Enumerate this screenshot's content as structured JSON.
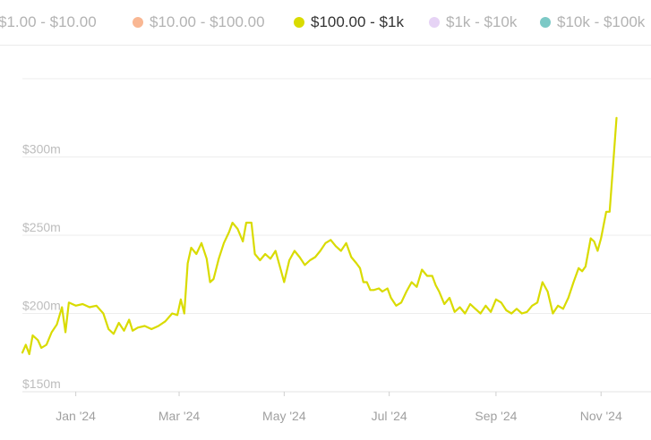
{
  "legend": {
    "items": [
      {
        "label": "$1.00 - $10.00",
        "color": "#f2f2f2",
        "active": false
      },
      {
        "label": "$10.00 - $100.00",
        "color": "#f9b793",
        "active": false
      },
      {
        "label": "$100.00 - $1k",
        "color": "#d9db00",
        "active": true
      },
      {
        "label": "$1k - $10k",
        "color": "#e6d3f5",
        "active": false
      },
      {
        "label": "$10k - $100k",
        "color": "#7cc9c6",
        "active": false
      }
    ]
  },
  "chart_data": {
    "type": "line",
    "title": "",
    "xlabel": "",
    "ylabel": "",
    "ylim": [
      150,
      350
    ],
    "xlim": [
      "2023-12-01",
      "2024-11-30"
    ],
    "y_ticks": [
      {
        "value": 150,
        "label": "$150m"
      },
      {
        "value": 200,
        "label": "$200m"
      },
      {
        "value": 250,
        "label": "$250m"
      },
      {
        "value": 300,
        "label": "$300m"
      }
    ],
    "x_ticks": [
      {
        "date": "2024-01-01",
        "label": "Jan '24"
      },
      {
        "date": "2024-03-01",
        "label": "Mar '24"
      },
      {
        "date": "2024-05-01",
        "label": "May '24"
      },
      {
        "date": "2024-07-01",
        "label": "Jul '24"
      },
      {
        "date": "2024-09-01",
        "label": "Sep '24"
      },
      {
        "date": "2024-11-01",
        "label": "Nov '24"
      }
    ],
    "grid": "horizontal",
    "legend_placement": "top",
    "series": [
      {
        "name": "$100.00 - $1k",
        "color": "#d9db00",
        "points": [
          [
            "2023-12-01",
            175
          ],
          [
            "2023-12-03",
            180
          ],
          [
            "2023-12-05",
            174
          ],
          [
            "2023-12-07",
            186
          ],
          [
            "2023-12-10",
            183
          ],
          [
            "2023-12-12",
            178
          ],
          [
            "2023-12-15",
            180
          ],
          [
            "2023-12-18",
            188
          ],
          [
            "2023-12-21",
            193
          ],
          [
            "2023-12-24",
            204
          ],
          [
            "2023-12-26",
            188
          ],
          [
            "2023-12-28",
            207
          ],
          [
            "2024-01-01",
            205
          ],
          [
            "2024-01-05",
            206
          ],
          [
            "2024-01-09",
            204
          ],
          [
            "2024-01-13",
            205
          ],
          [
            "2024-01-17",
            200
          ],
          [
            "2024-01-20",
            190
          ],
          [
            "2024-01-23",
            187
          ],
          [
            "2024-01-26",
            194
          ],
          [
            "2024-01-29",
            189
          ],
          [
            "2024-02-01",
            196
          ],
          [
            "2024-02-03",
            189
          ],
          [
            "2024-02-06",
            191
          ],
          [
            "2024-02-10",
            192
          ],
          [
            "2024-02-14",
            190
          ],
          [
            "2024-02-18",
            192
          ],
          [
            "2024-02-22",
            195
          ],
          [
            "2024-02-26",
            200
          ],
          [
            "2024-02-29",
            199
          ],
          [
            "2024-03-02",
            209
          ],
          [
            "2024-03-04",
            200
          ],
          [
            "2024-03-06",
            232
          ],
          [
            "2024-03-08",
            242
          ],
          [
            "2024-03-11",
            238
          ],
          [
            "2024-03-14",
            245
          ],
          [
            "2024-03-17",
            235
          ],
          [
            "2024-03-19",
            220
          ],
          [
            "2024-03-21",
            222
          ],
          [
            "2024-03-24",
            235
          ],
          [
            "2024-03-27",
            245
          ],
          [
            "2024-03-30",
            252
          ],
          [
            "2024-04-01",
            258
          ],
          [
            "2024-04-04",
            254
          ],
          [
            "2024-04-07",
            246
          ],
          [
            "2024-04-09",
            258
          ],
          [
            "2024-04-12",
            258
          ],
          [
            "2024-04-14",
            238
          ],
          [
            "2024-04-17",
            234
          ],
          [
            "2024-04-20",
            238
          ],
          [
            "2024-04-23",
            235
          ],
          [
            "2024-04-26",
            240
          ],
          [
            "2024-04-29",
            228
          ],
          [
            "2024-05-01",
            220
          ],
          [
            "2024-05-04",
            234
          ],
          [
            "2024-05-07",
            240
          ],
          [
            "2024-05-10",
            236
          ],
          [
            "2024-05-13",
            231
          ],
          [
            "2024-05-16",
            234
          ],
          [
            "2024-05-19",
            236
          ],
          [
            "2024-05-22",
            240
          ],
          [
            "2024-05-25",
            245
          ],
          [
            "2024-05-28",
            247
          ],
          [
            "2024-05-31",
            243
          ],
          [
            "2024-06-03",
            240
          ],
          [
            "2024-06-06",
            245
          ],
          [
            "2024-06-09",
            236
          ],
          [
            "2024-06-12",
            232
          ],
          [
            "2024-06-14",
            229
          ],
          [
            "2024-06-16",
            220
          ],
          [
            "2024-06-18",
            220
          ],
          [
            "2024-06-20",
            215
          ],
          [
            "2024-06-22",
            215
          ],
          [
            "2024-06-25",
            216
          ],
          [
            "2024-06-27",
            214
          ],
          [
            "2024-06-30",
            216
          ],
          [
            "2024-07-02",
            210
          ],
          [
            "2024-07-05",
            205
          ],
          [
            "2024-07-08",
            207
          ],
          [
            "2024-07-11",
            214
          ],
          [
            "2024-07-14",
            220
          ],
          [
            "2024-07-17",
            217
          ],
          [
            "2024-07-20",
            228
          ],
          [
            "2024-07-23",
            224
          ],
          [
            "2024-07-26",
            224
          ],
          [
            "2024-07-28",
            218
          ],
          [
            "2024-07-30",
            214
          ],
          [
            "2024-08-02",
            206
          ],
          [
            "2024-08-05",
            210
          ],
          [
            "2024-08-08",
            201
          ],
          [
            "2024-08-11",
            204
          ],
          [
            "2024-08-14",
            200
          ],
          [
            "2024-08-17",
            206
          ],
          [
            "2024-08-20",
            203
          ],
          [
            "2024-08-23",
            200
          ],
          [
            "2024-08-26",
            205
          ],
          [
            "2024-08-29",
            201
          ],
          [
            "2024-09-01",
            209
          ],
          [
            "2024-09-04",
            207
          ],
          [
            "2024-09-07",
            202
          ],
          [
            "2024-09-10",
            200
          ],
          [
            "2024-09-13",
            203
          ],
          [
            "2024-09-16",
            200
          ],
          [
            "2024-09-19",
            201
          ],
          [
            "2024-09-22",
            205
          ],
          [
            "2024-09-25",
            207
          ],
          [
            "2024-09-28",
            220
          ],
          [
            "2024-10-01",
            214
          ],
          [
            "2024-10-04",
            200
          ],
          [
            "2024-10-07",
            205
          ],
          [
            "2024-10-10",
            203
          ],
          [
            "2024-10-13",
            210
          ],
          [
            "2024-10-16",
            220
          ],
          [
            "2024-10-19",
            229
          ],
          [
            "2024-10-21",
            227
          ],
          [
            "2024-10-23",
            230
          ],
          [
            "2024-10-26",
            248
          ],
          [
            "2024-10-28",
            246
          ],
          [
            "2024-10-30",
            240
          ],
          [
            "2024-11-01",
            248
          ],
          [
            "2024-11-04",
            265
          ],
          [
            "2024-11-06",
            265
          ],
          [
            "2024-11-08",
            295
          ],
          [
            "2024-11-10",
            325
          ]
        ]
      }
    ]
  }
}
